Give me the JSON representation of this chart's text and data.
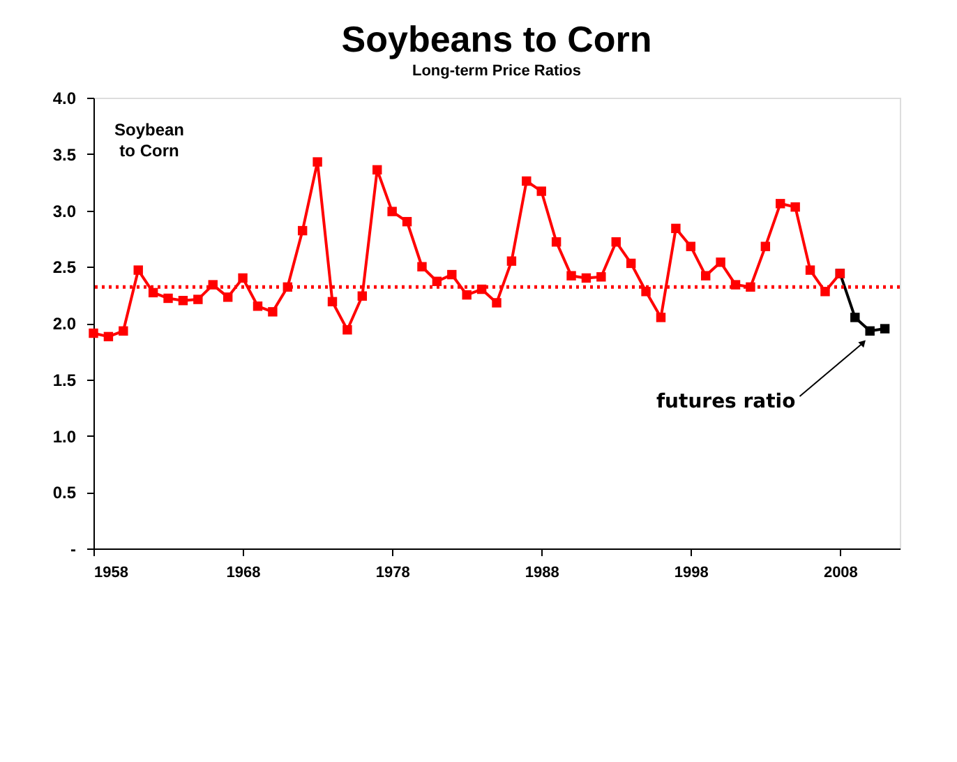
{
  "chart_data": {
    "type": "line",
    "title": "Soybeans to Corn",
    "subtitle": "Long-term Price Ratios",
    "ylabel": "Soybean\nto Corn",
    "xlim": [
      1958,
      2012
    ],
    "xticks": [
      1958,
      1968,
      1978,
      1988,
      1998,
      2008
    ],
    "ylim": [
      0,
      4
    ],
    "yticks": [
      {
        "value": 0,
        "label": "-"
      },
      {
        "value": 0.5,
        "label": "0.5"
      },
      {
        "value": 1,
        "label": "1.0"
      },
      {
        "value": 1.5,
        "label": "1.5"
      },
      {
        "value": 2,
        "label": "2.0"
      },
      {
        "value": 2.5,
        "label": "2.5"
      },
      {
        "value": 3,
        "label": "3.0"
      },
      {
        "value": 3.5,
        "label": "3.5"
      },
      {
        "value": 4,
        "label": "4.0"
      }
    ],
    "marker": "square",
    "grid": false,
    "series": [
      {
        "color": "#000000",
        "x": [
          2008,
          2009,
          2010,
          2011
        ],
        "values": [
          2.44,
          2.05,
          1.93,
          1.95
        ]
      },
      {
        "color": "#ff0000",
        "x": [
          1958,
          1959,
          1960,
          1961,
          1962,
          1963,
          1964,
          1965,
          1966,
          1967,
          1968,
          1969,
          1970,
          1971,
          1972,
          1973,
          1974,
          1975,
          1976,
          1977,
          1978,
          1979,
          1980,
          1981,
          1982,
          1983,
          1984,
          1985,
          1986,
          1987,
          1988,
          1989,
          1990,
          1991,
          1992,
          1993,
          1994,
          1995,
          1996,
          1997,
          1998,
          1999,
          2000,
          2001,
          2002,
          2003,
          2004,
          2005,
          2006,
          2007,
          2008
        ],
        "values": [
          1.91,
          1.88,
          1.93,
          2.47,
          2.27,
          2.22,
          2.2,
          2.21,
          2.34,
          2.23,
          2.4,
          2.15,
          2.1,
          2.32,
          2.82,
          3.43,
          2.19,
          1.94,
          2.24,
          3.36,
          2.99,
          2.9,
          2.5,
          2.37,
          2.43,
          2.25,
          2.3,
          2.18,
          2.55,
          3.26,
          3.17,
          2.72,
          2.42,
          2.4,
          2.41,
          2.72,
          2.53,
          2.28,
          2.05,
          2.84,
          2.68,
          2.42,
          2.54,
          2.34,
          2.32,
          2.68,
          3.06,
          3.03,
          2.47,
          2.28,
          2.44
        ]
      }
    ],
    "ref_lines": [
      {
        "axis": "y",
        "value": 2.32,
        "color": "#ff0000",
        "line_style": "dotted"
      }
    ],
    "annotations": [
      {
        "text": "futures ratio",
        "x": 2009.5,
        "y": 1.82
      }
    ]
  }
}
